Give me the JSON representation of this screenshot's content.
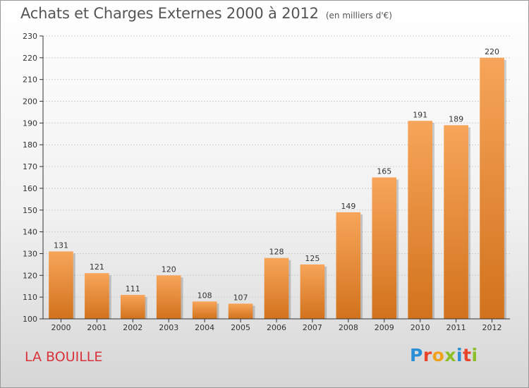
{
  "header": {
    "title": "Achats et Charges Externes 2000 à 2012",
    "unit_note": "(en milliers d'€)"
  },
  "footer": {
    "place": "LA BOUILLE",
    "logo_text": "Proxiti",
    "logo_colors": [
      "#2a8fd6",
      "#e8442a",
      "#f0a21c",
      "#8cbf26",
      "#2a8fd6",
      "#e8442a",
      "#8cbf26"
    ]
  },
  "colors": {
    "bar_top": "#f7a55a",
    "bar_bottom": "#d2721c",
    "axis": "#333333",
    "grid": "#cfcfcf",
    "place_text": "#d8333a"
  },
  "chart_data": {
    "type": "bar",
    "title": "Achats et Charges Externes 2000 à 2012",
    "subtitle": "(en milliers d'€)",
    "categories": [
      "2000",
      "2001",
      "2002",
      "2003",
      "2004",
      "2005",
      "2006",
      "2007",
      "2008",
      "2009",
      "2010",
      "2011",
      "2012"
    ],
    "values": [
      131,
      121,
      111,
      120,
      108,
      107,
      128,
      125,
      149,
      165,
      191,
      189,
      220
    ],
    "ylim": [
      100,
      230
    ],
    "yticks": [
      100,
      110,
      120,
      130,
      140,
      150,
      160,
      170,
      180,
      190,
      200,
      210,
      220,
      230
    ],
    "xlabel": "",
    "ylabel": "",
    "grid": true,
    "data_labels": true
  }
}
